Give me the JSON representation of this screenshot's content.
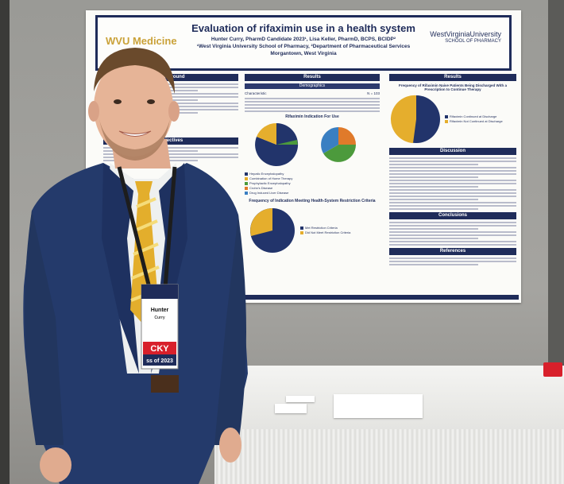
{
  "poster": {
    "title": "Evaluation of rifaximin use in a health system",
    "authors": "Hunter Curry, PharmD Candidate 2023¹, Lisa Keller, PharmD, BCPS, BCIDP²",
    "affiliations": "¹West Virginia University School of Pharmacy, ²Department of Pharmaceutical Services",
    "location": "Morgantown, West Virginia",
    "logo_left": "WVU Medicine",
    "logo_right": "WestVirginiaUniversity",
    "logo_right_sub": "SCHOOL OF PHARMACY",
    "left_col": {
      "background_head": "Background",
      "objectives_head": "Objectives"
    },
    "mid_col": {
      "results_head": "Results",
      "demographics_head": "Demographics",
      "table_head": {
        "c1": "Characteristic",
        "c2": "N = 103"
      },
      "chart1_title": "Rifaximin Indication For Use",
      "chart1_legend": [
        "Hepatic Encephalopathy",
        "Combination of Home Therapy",
        "Prophylactic Encephalopathy",
        "Crohn's Disease",
        "Drug Induced Liver Disease"
      ],
      "chart2_title": "Frequency of Indication Meeting Health-System Restriction Criteria",
      "chart2_legend": [
        "Met Restriction Criteria",
        "Did Not Meet Restriction Criteria"
      ]
    },
    "right_col": {
      "results_head": "Results",
      "chart3_title": "Frequency of Rifaximin Naive Patients Being Discharged With a Prescription to Continue Therapy",
      "chart3_legend": [
        "Rifaximin Continued at Discharge",
        "Rifaximin Not Continued at Discharge"
      ],
      "discussion_head": "Discussion",
      "conclusions_head": "Conclusions",
      "references_head": "References"
    }
  },
  "badge": {
    "name": "Hunter",
    "line2": "Curry",
    "ribbon": "CKY",
    "year": "ss of 2023"
  },
  "colors": {
    "navy": "#1f2c5a",
    "gold": "#e3ae2c",
    "suit": "#243a6b",
    "pie_blue": "#22346b",
    "pie_gold": "#e5ae2d",
    "pie_green": "#4c9a3c",
    "pie_orange": "#e07a2a",
    "pie_sky": "#3a7fc2"
  }
}
